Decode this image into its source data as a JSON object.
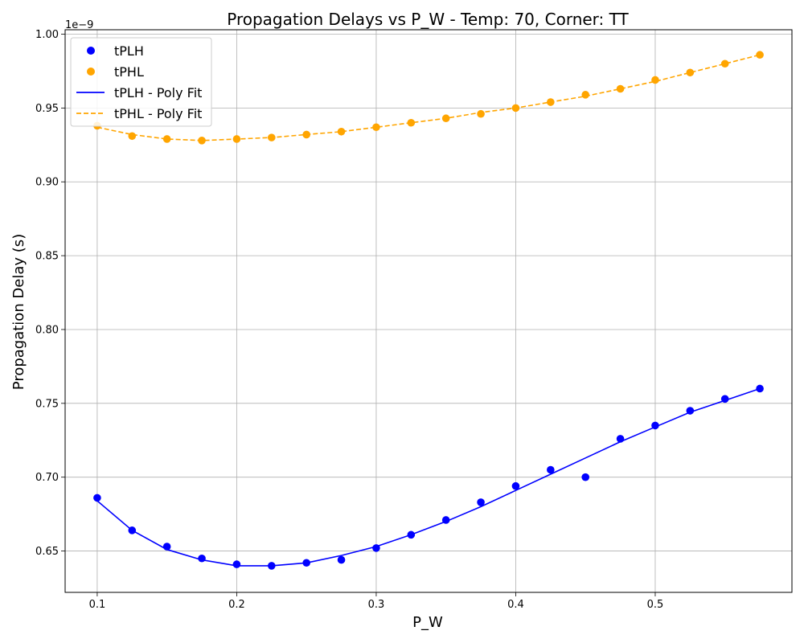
{
  "chart_data": {
    "type": "scatter",
    "title": "Propagation Delays vs P_W - Temp: 70, Corner: TT",
    "xlabel": "P_W",
    "ylabel": "Propagation Delay (s)",
    "y_offset_label": "1e−9",
    "xlim": [
      0.077,
      0.598
    ],
    "ylim": [
      0.622,
      1.003
    ],
    "x_ticks": [
      0.1,
      0.2,
      0.3,
      0.4,
      0.5
    ],
    "x_tick_labels": [
      "0.1",
      "0.2",
      "0.3",
      "0.4",
      "0.5"
    ],
    "y_ticks": [
      0.65,
      0.7,
      0.75,
      0.8,
      0.85,
      0.9,
      0.95,
      1.0
    ],
    "y_tick_labels": [
      "0.65",
      "0.70",
      "0.75",
      "0.80",
      "0.85",
      "0.90",
      "0.95",
      "1.00"
    ],
    "grid": true,
    "legend_position": "top-left",
    "x": [
      0.1,
      0.125,
      0.15,
      0.175,
      0.2,
      0.225,
      0.25,
      0.275,
      0.3,
      0.325,
      0.35,
      0.375,
      0.4,
      0.425,
      0.45,
      0.475,
      0.5,
      0.525,
      0.55,
      0.575
    ],
    "series": [
      {
        "name": "tPLH",
        "kind": "scatter",
        "color": "#0000ff",
        "values": [
          0.686,
          0.664,
          0.653,
          0.645,
          0.641,
          0.64,
          0.642,
          0.644,
          0.652,
          0.661,
          0.671,
          0.683,
          0.694,
          0.705,
          0.7,
          0.726,
          0.735,
          0.745,
          0.753,
          0.76
        ]
      },
      {
        "name": "tPHL",
        "kind": "scatter",
        "color": "#ffa500",
        "values": [
          0.938,
          0.931,
          0.929,
          0.928,
          0.929,
          0.93,
          0.932,
          0.934,
          0.937,
          0.94,
          0.943,
          0.946,
          0.95,
          0.954,
          0.959,
          0.963,
          0.969,
          0.974,
          0.98,
          0.986
        ]
      },
      {
        "name": "tPLH - Poly Fit",
        "kind": "line",
        "dash": "solid",
        "color": "#0000ff",
        "x": [
          0.1,
          0.125,
          0.15,
          0.175,
          0.2,
          0.225,
          0.25,
          0.275,
          0.3,
          0.325,
          0.35,
          0.375,
          0.4,
          0.425,
          0.45,
          0.475,
          0.5,
          0.525,
          0.55,
          0.575
        ],
        "values": [
          0.684,
          0.664,
          0.651,
          0.644,
          0.64,
          0.64,
          0.642,
          0.647,
          0.653,
          0.661,
          0.67,
          0.68,
          0.691,
          0.702,
          0.713,
          0.724,
          0.734,
          0.744,
          0.752,
          0.76
        ]
      },
      {
        "name": "tPHL - Poly Fit",
        "kind": "line",
        "dash": "dashed",
        "color": "#ffa500",
        "x": [
          0.1,
          0.125,
          0.15,
          0.175,
          0.2,
          0.225,
          0.25,
          0.275,
          0.3,
          0.325,
          0.35,
          0.375,
          0.4,
          0.425,
          0.45,
          0.475,
          0.5,
          0.525,
          0.55,
          0.575
        ],
        "values": [
          0.937,
          0.932,
          0.929,
          0.928,
          0.929,
          0.93,
          0.932,
          0.934,
          0.937,
          0.94,
          0.943,
          0.947,
          0.95,
          0.954,
          0.958,
          0.963,
          0.968,
          0.974,
          0.98,
          0.986
        ]
      }
    ]
  }
}
